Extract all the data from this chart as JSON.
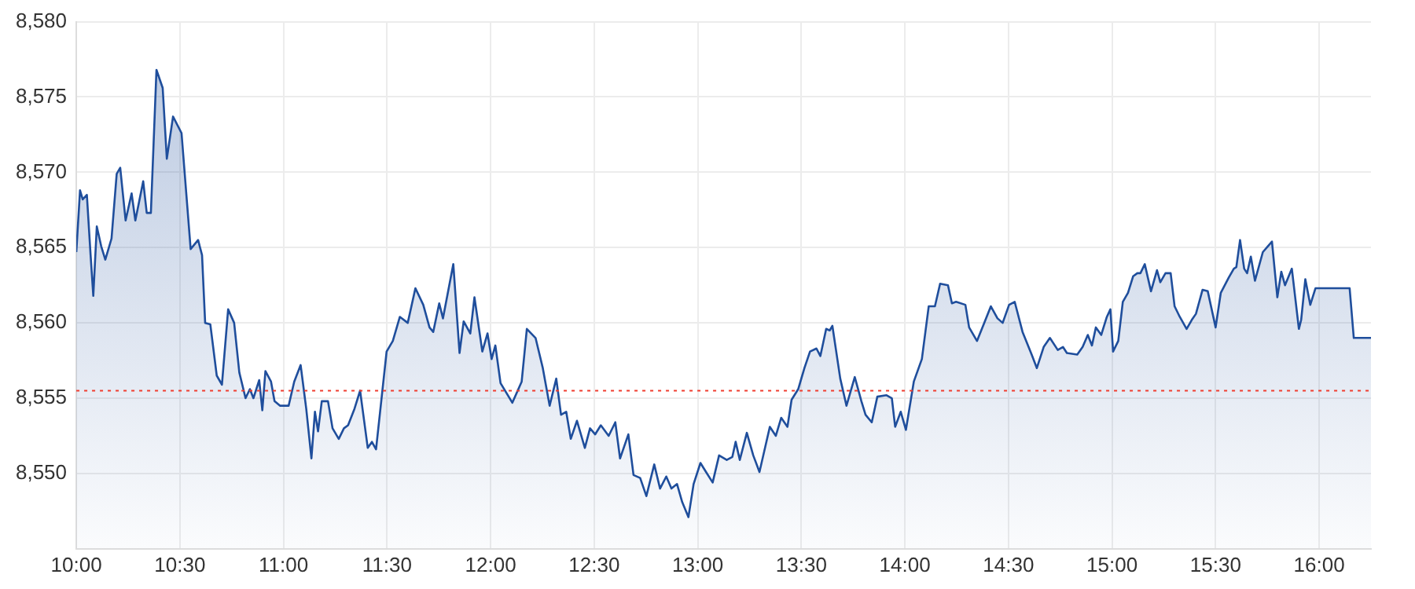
{
  "chart_data": {
    "type": "area",
    "xlim": [
      10,
      16.25
    ],
    "xticks": [
      {
        "value": 10,
        "label": "10:00"
      },
      {
        "value": 10.5,
        "label": "10:30"
      },
      {
        "value": 11,
        "label": "11:00"
      },
      {
        "value": 11.5,
        "label": "11:30"
      },
      {
        "value": 12,
        "label": "12:00"
      },
      {
        "value": 12.5,
        "label": "12:30"
      },
      {
        "value": 13,
        "label": "13:00"
      },
      {
        "value": 13.5,
        "label": "13:30"
      },
      {
        "value": 14,
        "label": "14:00"
      },
      {
        "value": 14.5,
        "label": "14:30"
      },
      {
        "value": 15,
        "label": "15:00"
      },
      {
        "value": 15.5,
        "label": "15:30"
      },
      {
        "value": 16,
        "label": "16:00"
      }
    ],
    "ylim": [
      8545,
      8580
    ],
    "yticks": [
      {
        "value": 8550,
        "label": "8,550"
      },
      {
        "value": 8555,
        "label": "8,555"
      },
      {
        "value": 8560,
        "label": "8,560"
      },
      {
        "value": 8565,
        "label": "8,565"
      },
      {
        "value": 8570,
        "label": "8,570"
      },
      {
        "value": 8575,
        "label": "8,575"
      },
      {
        "value": 8580,
        "label": "8,580"
      }
    ],
    "grid": true,
    "ref_lines": [
      {
        "axis": "y",
        "value": 8555.5,
        "color": "#f03c2e",
        "line_style": "dotted"
      }
    ],
    "series": [
      {
        "color": "#1f4e9c",
        "x": [
          10.0,
          10.018,
          10.031,
          10.051,
          10.069,
          10.082,
          10.099,
          10.12,
          10.14,
          10.17,
          10.195,
          10.212,
          10.238,
          10.267,
          10.285,
          10.323,
          10.34,
          10.36,
          10.387,
          10.417,
          10.437,
          10.467,
          10.508,
          10.552,
          10.588,
          10.607,
          10.622,
          10.647,
          10.678,
          10.703,
          10.733,
          10.762,
          10.787,
          10.817,
          10.838,
          10.855,
          10.883,
          10.898,
          10.913,
          10.94,
          10.957,
          10.983,
          11.025,
          11.052,
          11.083,
          11.11,
          11.135,
          11.152,
          11.167,
          11.185,
          11.215,
          11.237,
          11.267,
          11.292,
          11.312,
          11.343,
          11.37,
          11.407,
          11.427,
          11.447,
          11.498,
          11.528,
          11.562,
          11.6,
          11.637,
          11.675,
          11.705,
          11.723,
          11.752,
          11.77,
          11.82,
          11.85,
          11.87,
          11.902,
          11.922,
          11.96,
          11.985,
          12.005,
          12.023,
          12.048,
          12.105,
          12.15,
          12.175,
          12.217,
          12.252,
          12.285,
          12.317,
          12.34,
          12.365,
          12.387,
          12.417,
          12.455,
          12.48,
          12.505,
          12.532,
          12.57,
          12.602,
          12.625,
          12.665,
          12.69,
          12.722,
          12.752,
          12.79,
          12.818,
          12.848,
          12.873,
          12.9,
          12.925,
          12.955,
          12.98,
          13.013,
          13.04,
          13.072,
          13.103,
          13.14,
          13.167,
          13.183,
          13.203,
          13.237,
          13.268,
          13.298,
          13.348,
          13.377,
          13.403,
          13.433,
          13.453,
          13.485,
          13.515,
          13.542,
          13.573,
          13.592,
          13.62,
          13.637,
          13.65,
          13.688,
          13.718,
          13.758,
          13.79,
          13.81,
          13.84,
          13.867,
          13.91,
          13.937,
          13.953,
          13.98,
          14.005,
          14.043,
          14.082,
          14.115,
          14.145,
          14.17,
          14.208,
          14.227,
          14.247,
          14.292,
          14.31,
          14.348,
          14.383,
          14.415,
          14.447,
          14.472,
          14.503,
          14.53,
          14.568,
          14.612,
          14.637,
          14.67,
          14.7,
          14.738,
          14.763,
          14.782,
          14.832,
          14.858,
          14.883,
          14.903,
          14.922,
          14.948,
          14.975,
          14.992,
          15.005,
          15.03,
          15.052,
          15.077,
          15.102,
          15.122,
          15.137,
          15.158,
          15.188,
          15.217,
          15.233,
          15.258,
          15.283,
          15.302,
          15.327,
          15.36,
          15.385,
          15.405,
          15.437,
          15.462,
          15.5,
          15.525,
          15.563,
          15.588,
          15.6,
          15.618,
          15.638,
          15.652,
          15.67,
          15.69,
          15.728,
          15.753,
          15.772,
          15.798,
          15.817,
          15.835,
          15.868,
          15.902,
          15.913,
          15.933,
          15.957,
          15.982,
          16.147,
          16.167,
          16.25
        ],
        "values": [
          8564.7,
          8568.8,
          8568.2,
          8568.5,
          8564.5,
          8561.8,
          8566.4,
          8565.1,
          8564.2,
          8565.6,
          8569.9,
          8570.3,
          8566.8,
          8568.6,
          8566.8,
          8569.4,
          8567.3,
          8567.3,
          8576.8,
          8575.6,
          8570.9,
          8573.7,
          8572.6,
          8564.9,
          8565.5,
          8564.5,
          8560.0,
          8559.9,
          8556.5,
          8555.9,
          8560.9,
          8560.0,
          8556.7,
          8555.0,
          8555.6,
          8555.0,
          8556.2,
          8554.2,
          8556.8,
          8556.1,
          8554.8,
          8554.5,
          8554.5,
          8556.1,
          8557.2,
          8554.3,
          8551.0,
          8554.1,
          8552.8,
          8554.8,
          8554.8,
          8553.0,
          8552.3,
          8553.0,
          8553.2,
          8554.3,
          8555.5,
          8551.7,
          8552.1,
          8551.6,
          8558.1,
          8558.8,
          8560.4,
          8560.0,
          8562.3,
          8561.2,
          8559.7,
          8559.4,
          8561.3,
          8560.3,
          8563.9,
          8558.0,
          8560.1,
          8559.3,
          8561.7,
          8558.1,
          8559.3,
          8557.6,
          8558.5,
          8556.0,
          8554.7,
          8556.1,
          8559.6,
          8559.0,
          8557.0,
          8554.5,
          8556.3,
          8553.9,
          8554.1,
          8552.3,
          8553.5,
          8551.7,
          8553.0,
          8552.6,
          8553.2,
          8552.5,
          8553.4,
          8551.0,
          8552.6,
          8549.9,
          8549.7,
          8548.5,
          8550.6,
          8549.0,
          8549.8,
          8549.0,
          8549.3,
          8548.1,
          8547.1,
          8549.3,
          8550.7,
          8550.1,
          8549.4,
          8551.2,
          8550.9,
          8551.1,
          8552.1,
          8550.9,
          8552.7,
          8551.2,
          8550.1,
          8553.1,
          8552.5,
          8553.7,
          8553.1,
          8554.9,
          8555.6,
          8557.0,
          8558.1,
          8558.3,
          8557.8,
          8559.6,
          8559.5,
          8559.8,
          8556.3,
          8554.5,
          8556.4,
          8554.8,
          8553.9,
          8553.4,
          8555.1,
          8555.2,
          8555.0,
          8553.1,
          8554.1,
          8552.9,
          8556.1,
          8557.6,
          8561.1,
          8561.1,
          8562.6,
          8562.5,
          8561.3,
          8561.4,
          8561.2,
          8559.7,
          8558.8,
          8560.0,
          8561.1,
          8560.3,
          8560.0,
          8561.2,
          8561.4,
          8559.4,
          8557.9,
          8557.0,
          8558.4,
          8559.0,
          8558.2,
          8558.4,
          8558.0,
          8557.9,
          8558.4,
          8559.2,
          8558.5,
          8559.7,
          8559.2,
          8560.4,
          8560.9,
          8558.1,
          8558.8,
          8561.4,
          8562.0,
          8563.1,
          8563.3,
          8563.3,
          8563.9,
          8562.1,
          8563.5,
          8562.7,
          8563.3,
          8563.3,
          8561.1,
          8560.4,
          8559.6,
          8560.2,
          8560.6,
          8562.2,
          8562.1,
          8559.7,
          8562.0,
          8563.0,
          8563.6,
          8563.7,
          8565.5,
          8563.6,
          8563.3,
          8564.4,
          8562.8,
          8564.7,
          8565.1,
          8565.4,
          8561.7,
          8563.4,
          8562.5,
          8563.6,
          8559.6,
          8560.2,
          8562.9,
          8561.2,
          8562.3,
          8562.3,
          8559.0,
          8559.0
        ]
      }
    ]
  }
}
